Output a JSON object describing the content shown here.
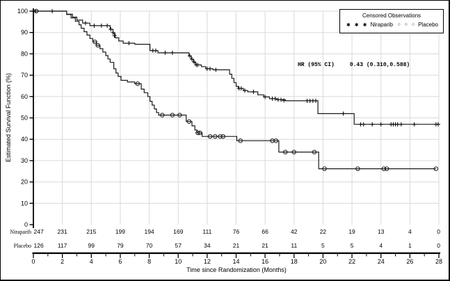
{
  "figure": {
    "legend": {
      "title": "Censored Observations",
      "series": [
        {
          "label": "Niraparib",
          "markers": "✱ ✱ ✱"
        },
        {
          "label": "Placebo",
          "markers": "○ ○ ○"
        }
      ]
    },
    "annotation": {
      "label": "HR (95% CI)",
      "value": "0.43 (0.310,0.588)"
    }
  },
  "chart_data": {
    "type": "line",
    "subtype": "kaplan-meier-step",
    "title": "",
    "xlabel": "Time since Randomization (Months)",
    "ylabel": "Estimated Survival Function (%)",
    "xlim": [
      0,
      28
    ],
    "ylim": [
      0,
      100
    ],
    "xticks": [
      0,
      2,
      4,
      6,
      8,
      10,
      12,
      14,
      16,
      18,
      20,
      22,
      24,
      26,
      28
    ],
    "minor_xtick_step": 1,
    "yticks": [
      0,
      10,
      20,
      30,
      40,
      50,
      60,
      70,
      80,
      90,
      100
    ],
    "grid": true,
    "grid_color": "#d9d9d9",
    "line_color": "#1a1a1a",
    "legend_position": "top-right",
    "series": [
      {
        "name": "Niraparib",
        "marker": "plus",
        "steps": [
          [
            0,
            100
          ],
          [
            2.3,
            100
          ],
          [
            2.3,
            98.6
          ],
          [
            2.7,
            98.6
          ],
          [
            2.7,
            97.2
          ],
          [
            3.0,
            97.2
          ],
          [
            3.0,
            95.8
          ],
          [
            3.4,
            95.8
          ],
          [
            3.4,
            94.4
          ],
          [
            3.9,
            94.4
          ],
          [
            3.9,
            93.2
          ],
          [
            5.3,
            93.2
          ],
          [
            5.3,
            91.5
          ],
          [
            5.5,
            91.5
          ],
          [
            5.5,
            89.5
          ],
          [
            5.65,
            89.5
          ],
          [
            5.65,
            87.5
          ],
          [
            5.9,
            87.5
          ],
          [
            5.9,
            86
          ],
          [
            6.2,
            86
          ],
          [
            6.2,
            85
          ],
          [
            7.0,
            85
          ],
          [
            7.0,
            84.5
          ],
          [
            8.05,
            84.5
          ],
          [
            8.05,
            81.5
          ],
          [
            8.6,
            81.5
          ],
          [
            8.6,
            80.5
          ],
          [
            10.75,
            80.5
          ],
          [
            10.75,
            79
          ],
          [
            10.9,
            79
          ],
          [
            10.9,
            77.5
          ],
          [
            11.05,
            77.5
          ],
          [
            11.05,
            76
          ],
          [
            11.2,
            76
          ],
          [
            11.2,
            74.8
          ],
          [
            11.6,
            74.8
          ],
          [
            11.6,
            74
          ],
          [
            11.9,
            74
          ],
          [
            11.9,
            73
          ],
          [
            12.4,
            73
          ],
          [
            12.4,
            72.5
          ],
          [
            13.55,
            72.5
          ],
          [
            13.55,
            70.5
          ],
          [
            13.7,
            70.5
          ],
          [
            13.7,
            68.5
          ],
          [
            13.85,
            68.5
          ],
          [
            13.85,
            66.5
          ],
          [
            14.0,
            66.5
          ],
          [
            14.0,
            64.8
          ],
          [
            14.15,
            64.8
          ],
          [
            14.15,
            63.8
          ],
          [
            14.5,
            63.8
          ],
          [
            14.5,
            62.8
          ],
          [
            14.8,
            62.8
          ],
          [
            14.8,
            62.2
          ],
          [
            15.5,
            62.2
          ],
          [
            15.5,
            60.8
          ],
          [
            15.9,
            60.8
          ],
          [
            15.9,
            59.8
          ],
          [
            16.3,
            59.8
          ],
          [
            16.3,
            59
          ],
          [
            16.8,
            59
          ],
          [
            16.8,
            58.5
          ],
          [
            17.4,
            58.5
          ],
          [
            17.4,
            58
          ],
          [
            19.65,
            58
          ],
          [
            19.65,
            52
          ],
          [
            22.15,
            52
          ],
          [
            22.15,
            47
          ],
          [
            28,
            47
          ]
        ],
        "censors": [
          [
            0.15,
            100
          ],
          [
            1.3,
            100
          ],
          [
            3.6,
            94.4
          ],
          [
            4.2,
            93.2
          ],
          [
            4.7,
            93.2
          ],
          [
            5.1,
            93.2
          ],
          [
            5.35,
            91.5
          ],
          [
            5.5,
            90
          ],
          [
            5.6,
            88.5
          ],
          [
            6.6,
            85
          ],
          [
            8.25,
            81.5
          ],
          [
            8.45,
            81.5
          ],
          [
            9.1,
            80.5
          ],
          [
            9.6,
            80.5
          ],
          [
            10.8,
            79
          ],
          [
            10.95,
            77.5
          ],
          [
            11.1,
            76.2
          ],
          [
            11.25,
            74.8
          ],
          [
            11.35,
            74.8
          ],
          [
            12.0,
            73
          ],
          [
            12.2,
            73
          ],
          [
            12.6,
            72.5
          ],
          [
            14.2,
            63.8
          ],
          [
            14.35,
            63.8
          ],
          [
            14.6,
            62.8
          ],
          [
            15.2,
            62.2
          ],
          [
            16.0,
            59.8
          ],
          [
            16.5,
            59
          ],
          [
            16.7,
            59
          ],
          [
            16.9,
            58.5
          ],
          [
            17.1,
            58.5
          ],
          [
            17.3,
            58.2
          ],
          [
            18.9,
            58
          ],
          [
            19.1,
            58
          ],
          [
            19.3,
            58
          ],
          [
            19.5,
            58
          ],
          [
            21.4,
            52
          ],
          [
            22.6,
            47
          ],
          [
            22.8,
            47
          ],
          [
            23.4,
            47
          ],
          [
            24.0,
            47
          ],
          [
            24.7,
            47
          ],
          [
            24.85,
            47
          ],
          [
            25.0,
            47
          ],
          [
            25.15,
            47
          ],
          [
            25.4,
            47
          ],
          [
            26.3,
            47
          ],
          [
            27.8,
            47
          ],
          [
            27.95,
            47
          ]
        ]
      },
      {
        "name": "Placebo",
        "marker": "circle",
        "steps": [
          [
            0,
            100
          ],
          [
            2.3,
            100
          ],
          [
            2.3,
            98.4
          ],
          [
            2.6,
            98.4
          ],
          [
            2.6,
            96.8
          ],
          [
            2.9,
            96.8
          ],
          [
            2.9,
            95.2
          ],
          [
            3.15,
            95.2
          ],
          [
            3.15,
            93.6
          ],
          [
            3.3,
            93.6
          ],
          [
            3.3,
            92
          ],
          [
            3.5,
            92
          ],
          [
            3.5,
            90.4
          ],
          [
            3.7,
            90.4
          ],
          [
            3.7,
            88.8
          ],
          [
            3.9,
            88.8
          ],
          [
            3.9,
            87.2
          ],
          [
            4.1,
            87.2
          ],
          [
            4.1,
            85.6
          ],
          [
            4.35,
            85.6
          ],
          [
            4.35,
            84
          ],
          [
            4.6,
            84
          ],
          [
            4.6,
            82.4
          ],
          [
            4.8,
            82.4
          ],
          [
            4.8,
            80.8
          ],
          [
            5.0,
            80.8
          ],
          [
            5.0,
            79.2
          ],
          [
            5.15,
            79.2
          ],
          [
            5.15,
            77.6
          ],
          [
            5.3,
            77.6
          ],
          [
            5.3,
            76
          ],
          [
            5.55,
            76
          ],
          [
            5.55,
            73
          ],
          [
            5.7,
            73
          ],
          [
            5.7,
            71
          ],
          [
            5.85,
            71
          ],
          [
            5.85,
            69.4
          ],
          [
            6.05,
            69.4
          ],
          [
            6.05,
            67.6
          ],
          [
            6.5,
            67.6
          ],
          [
            6.5,
            66.8
          ],
          [
            7.0,
            66.8
          ],
          [
            7.0,
            66
          ],
          [
            7.45,
            66
          ],
          [
            7.45,
            63.5
          ],
          [
            7.65,
            63.5
          ],
          [
            7.65,
            61.8
          ],
          [
            7.9,
            61.8
          ],
          [
            7.9,
            60
          ],
          [
            8.05,
            60
          ],
          [
            8.05,
            57.8
          ],
          [
            8.2,
            57.8
          ],
          [
            8.2,
            56
          ],
          [
            8.35,
            56
          ],
          [
            8.35,
            54.2
          ],
          [
            8.5,
            54.2
          ],
          [
            8.5,
            52.5
          ],
          [
            8.65,
            52.5
          ],
          [
            8.65,
            51.3
          ],
          [
            10.55,
            51.3
          ],
          [
            10.55,
            48.3
          ],
          [
            10.95,
            48.3
          ],
          [
            10.95,
            46.3
          ],
          [
            11.15,
            46.3
          ],
          [
            11.15,
            44.3
          ],
          [
            11.3,
            44.3
          ],
          [
            11.3,
            43
          ],
          [
            11.65,
            43
          ],
          [
            11.65,
            41.3
          ],
          [
            14.05,
            41.3
          ],
          [
            14.05,
            39.3
          ],
          [
            16.95,
            39.3
          ],
          [
            16.95,
            34
          ],
          [
            19.7,
            34
          ],
          [
            19.7,
            26.2
          ],
          [
            27.8,
            26.2
          ]
        ],
        "censors": [
          [
            0.2,
            100
          ],
          [
            4.25,
            85.6
          ],
          [
            4.45,
            84
          ],
          [
            7.2,
            66
          ],
          [
            8.9,
            51.3
          ],
          [
            9.6,
            51.3
          ],
          [
            10.1,
            51.3
          ],
          [
            10.75,
            48.3
          ],
          [
            11.35,
            43
          ],
          [
            11.5,
            43
          ],
          [
            12.2,
            41.3
          ],
          [
            12.55,
            41.3
          ],
          [
            12.9,
            41.3
          ],
          [
            13.1,
            41.3
          ],
          [
            14.3,
            39.3
          ],
          [
            16.5,
            39.3
          ],
          [
            16.75,
            39.3
          ],
          [
            17.4,
            34
          ],
          [
            18.0,
            34
          ],
          [
            19.4,
            34
          ],
          [
            20.1,
            26.2
          ],
          [
            22.4,
            26.2
          ],
          [
            24.2,
            26.2
          ],
          [
            24.4,
            26.2
          ],
          [
            27.8,
            26.2
          ]
        ]
      }
    ],
    "at_risk": {
      "months": [
        0,
        2,
        4,
        6,
        8,
        10,
        12,
        14,
        16,
        18,
        20,
        22,
        24,
        26,
        28
      ],
      "rows": [
        {
          "label": "Niraparib",
          "counts": [
            247,
            231,
            215,
            199,
            194,
            169,
            111,
            76,
            66,
            42,
            22,
            19,
            13,
            4,
            0
          ]
        },
        {
          "label": "Placebo",
          "counts": [
            126,
            117,
            99,
            79,
            70,
            57,
            34,
            21,
            21,
            11,
            5,
            5,
            4,
            1,
            0
          ]
        }
      ]
    }
  }
}
